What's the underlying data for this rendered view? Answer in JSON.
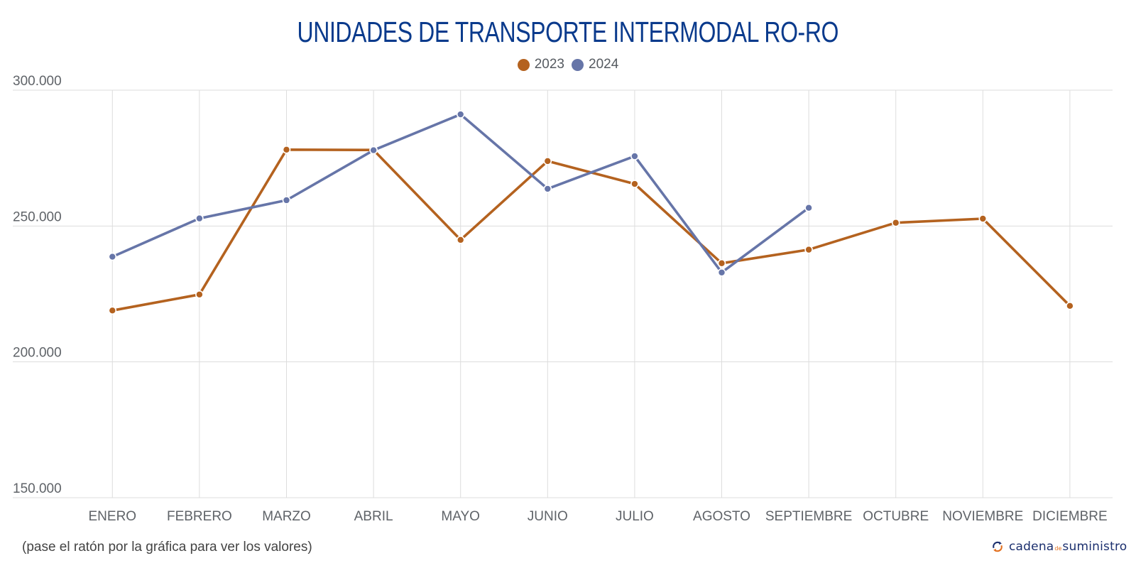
{
  "chart_data": {
    "type": "line",
    "title": "UNIDADES DE TRANSPORTE INTERMODAL RO-RO",
    "xlabel": "",
    "ylabel": "",
    "ylim": [
      150000,
      300000
    ],
    "yticks": [
      150000,
      200000,
      250000,
      300000
    ],
    "ytick_labels": [
      "150.000",
      "200.000",
      "250.000",
      "300.000"
    ],
    "categories": [
      "ENERO",
      "FEBRERO",
      "MARZO",
      "ABRIL",
      "MAYO",
      "JUNIO",
      "JULIO",
      "AGOSTO",
      "SEPTIEMBRE",
      "OCTUBRE",
      "NOVIEMBRE",
      "DICIEMBRE"
    ],
    "grid": true,
    "legend_position": "top-center",
    "series": [
      {
        "name": "2023",
        "color": "#b4621f",
        "values": [
          218900,
          224800,
          278100,
          278000,
          244900,
          273900,
          265500,
          236300,
          241300,
          251200,
          252700,
          220600
        ]
      },
      {
        "name": "2024",
        "color": "#6675a8",
        "values": [
          238700,
          252800,
          259500,
          277900,
          291100,
          263700,
          275700,
          232900,
          256700,
          null,
          null,
          null
        ]
      }
    ]
  },
  "footer": {
    "note": "(pase el ratón por la gráfica para ver los valores)"
  },
  "logo": {
    "word1": "cadena",
    "word2": "de",
    "word3": "suministro",
    "icon": "refresh-arrows-icon"
  },
  "colors": {
    "title": "#0a3a8c",
    "grid": "#dddddd",
    "axis_text": "#5f6368"
  }
}
